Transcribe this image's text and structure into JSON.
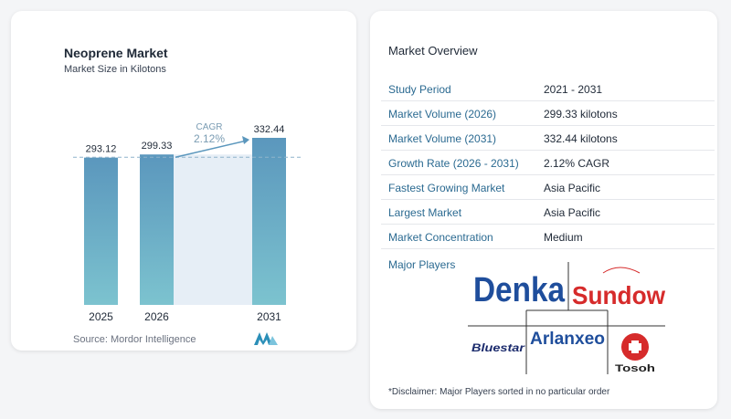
{
  "chart_data": {
    "type": "bar",
    "title": "Neoprene Market",
    "subtitle": "Market Size in Kilotons",
    "categories": [
      "2025",
      "2026",
      "2031"
    ],
    "values": [
      293.12,
      299.33,
      332.44
    ],
    "value_labels": [
      "293.12",
      "299.33",
      "332.44"
    ],
    "annotation": {
      "label": "CAGR",
      "value": "2.12%"
    },
    "bar_color": "#5b97bd",
    "legend": "none",
    "grid": false
  },
  "source": "Source:  Mordor Intelligence",
  "overview": {
    "title": "Market Overview",
    "rows": [
      {
        "label": "Study Period",
        "value": "2021 - 2031"
      },
      {
        "label": "Market Volume (2026)",
        "value": "299.33 kilotons"
      },
      {
        "label": "Market Volume (2031)",
        "value": "332.44 kilotons"
      },
      {
        "label": "Growth Rate (2026 - 2031)",
        "value": "2.12% CAGR"
      },
      {
        "label": "Fastest Growing Market",
        "value": "Asia Pacific"
      },
      {
        "label": "Largest Market",
        "value": "Asia Pacific"
      },
      {
        "label": "Market Concentration",
        "value": "Medium"
      }
    ],
    "players_label": "Major Players",
    "players": [
      "Denka",
      "Sundow",
      "Bluestar",
      "Arlanxeo",
      "Tosoh"
    ],
    "disclaimer": "*Disclaimer: Major Players sorted in no particular order"
  }
}
